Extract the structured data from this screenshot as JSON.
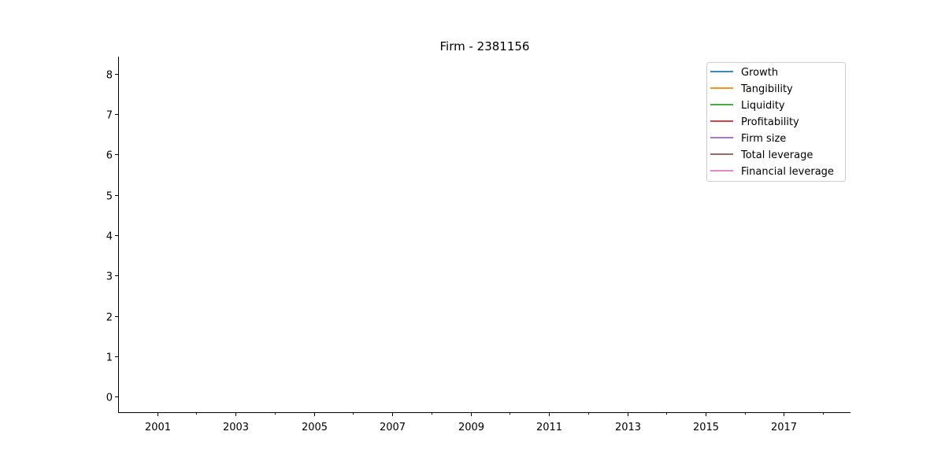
{
  "chart_data": {
    "type": "line",
    "title": "Firm - 2381156",
    "xlabel": "",
    "ylabel": "",
    "xlim": [
      2000,
      2018.7
    ],
    "ylim": [
      -0.4,
      8.42
    ],
    "x_major_ticks": [
      2001,
      2003,
      2005,
      2007,
      2009,
      2011,
      2013,
      2015,
      2017
    ],
    "x_minor_ticks": [
      2002,
      2004,
      2006,
      2008,
      2010,
      2012,
      2014,
      2016,
      2018
    ],
    "y_ticks": [
      0,
      1,
      2,
      3,
      4,
      5,
      6,
      7,
      8
    ],
    "grid": false,
    "legend_position": "top-right",
    "series": [
      {
        "name": "Growth",
        "color": "#1f77b4",
        "x": [],
        "y": []
      },
      {
        "name": "Tangibility",
        "color": "#ff7f0e",
        "x": [],
        "y": []
      },
      {
        "name": "Liquidity",
        "color": "#2ca02c",
        "x": [],
        "y": []
      },
      {
        "name": "Profitability",
        "color": "#d62728",
        "x": [],
        "y": []
      },
      {
        "name": "Firm size",
        "color": "#9467bd",
        "x": [],
        "y": []
      },
      {
        "name": "Total leverage",
        "color": "#8c564b",
        "x": [],
        "y": []
      },
      {
        "name": "Financial leverage",
        "color": "#e377c2",
        "x": [],
        "y": []
      }
    ]
  }
}
